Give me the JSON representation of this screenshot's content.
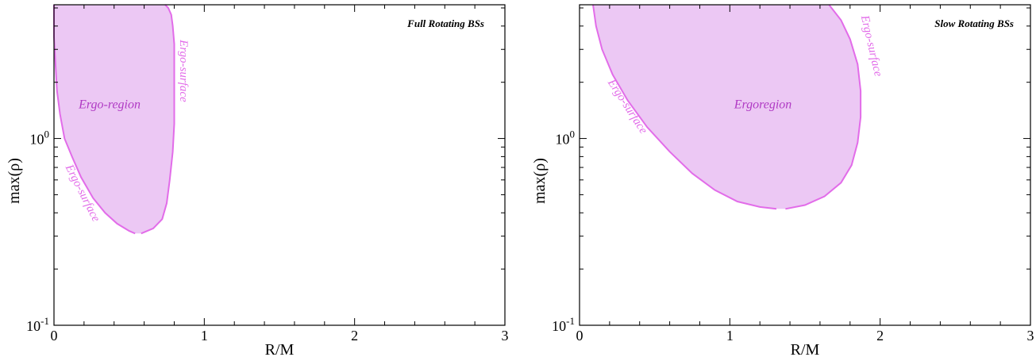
{
  "chart_data": [
    {
      "type": "area",
      "title": "Full Rotating BSs",
      "xlabel": "R/M",
      "ylabel": "max(ρ)",
      "xlim": [
        0,
        3
      ],
      "ylim": [
        0.1,
        5.2
      ],
      "yscale": "log",
      "x_ticks": [
        "0",
        "1",
        "2",
        "3"
      ],
      "y_ticks": [
        {
          "base": "10",
          "exp": "-1"
        },
        {
          "base": "10",
          "exp": "0"
        }
      ],
      "grid": false,
      "fill_color": "#ecc8f4",
      "line_color": "#e26ce9",
      "label_color": "#b03ac4",
      "region_label": "Ergo-region",
      "surface_labels": [
        "Ergo-surface",
        "Ergo-surface"
      ],
      "region": {
        "outer_x": [
          0.0,
          0.0,
          0.01,
          0.02,
          0.04,
          0.07,
          0.12,
          0.18,
          0.26,
          0.34,
          0.42,
          0.5,
          0.54
        ],
        "outer_y": [
          5.2,
          3.5,
          2.5,
          1.8,
          1.35,
          1.0,
          0.8,
          0.62,
          0.48,
          0.4,
          0.35,
          0.32,
          0.31
        ],
        "inner_x": [
          0.58,
          0.66,
          0.72,
          0.75,
          0.77,
          0.79,
          0.8,
          0.8,
          0.8,
          0.8,
          0.79,
          0.78,
          0.76,
          0.74
        ],
        "inner_y": [
          0.31,
          0.33,
          0.37,
          0.45,
          0.6,
          0.85,
          1.2,
          1.7,
          2.4,
          3.2,
          4.0,
          4.6,
          5.0,
          5.2
        ]
      }
    },
    {
      "type": "area",
      "title": "Slow Rotating BSs",
      "xlabel": "R/M",
      "ylabel": "max(ρ)",
      "xlim": [
        0,
        3
      ],
      "ylim": [
        0.1,
        5.2
      ],
      "yscale": "log",
      "x_ticks": [
        "0",
        "1",
        "2",
        "3"
      ],
      "y_ticks": [
        {
          "base": "10",
          "exp": "-1"
        },
        {
          "base": "10",
          "exp": "0"
        }
      ],
      "grid": false,
      "fill_color": "#ecc8f4",
      "line_color": "#e26ce9",
      "label_color": "#b03ac4",
      "region_label": "Ergoregion",
      "surface_labels": [
        "Ergo-surface",
        "Ergo-surface"
      ],
      "region": {
        "outer_x": [
          0.09,
          0.11,
          0.15,
          0.22,
          0.32,
          0.45,
          0.6,
          0.75,
          0.9,
          1.05,
          1.2,
          1.31
        ],
        "outer_y": [
          5.2,
          4.0,
          3.0,
          2.2,
          1.6,
          1.15,
          0.85,
          0.65,
          0.53,
          0.46,
          0.43,
          0.42
        ],
        "inner_x": [
          1.37,
          1.5,
          1.63,
          1.74,
          1.81,
          1.85,
          1.87,
          1.87,
          1.85,
          1.8,
          1.74,
          1.66
        ],
        "inner_y": [
          0.42,
          0.44,
          0.49,
          0.58,
          0.72,
          0.95,
          1.3,
          1.8,
          2.5,
          3.4,
          4.3,
          5.2
        ]
      }
    }
  ]
}
